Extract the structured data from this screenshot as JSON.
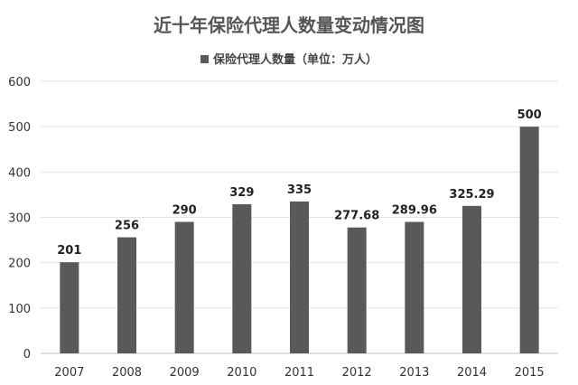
{
  "chart_data": {
    "type": "bar",
    "title": "近十年保险代理人数量变动情况图",
    "categories": [
      "2007",
      "2008",
      "2009",
      "2010",
      "2011",
      "2012",
      "2013",
      "2014",
      "2015"
    ],
    "series": [
      {
        "name": "保险代理人数量（单位：万人）",
        "values": [
          201,
          256,
          290,
          329,
          335,
          277.68,
          289.96,
          325.29,
          500
        ],
        "labels": [
          "201",
          "256",
          "290",
          "329",
          "335",
          "277.68",
          "289.96",
          "325.29",
          "500"
        ]
      }
    ],
    "y_ticks": [
      "0",
      "100",
      "200",
      "300",
      "400",
      "500",
      "600"
    ],
    "ylim": [
      0,
      600
    ],
    "grid": true,
    "legend_position": "top",
    "bar_color": "#595959"
  }
}
